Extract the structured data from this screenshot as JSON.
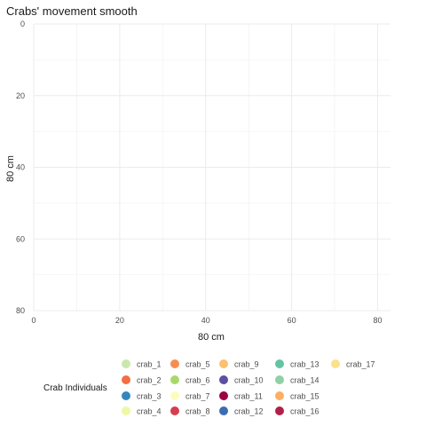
{
  "chart_data": {
    "type": "scatter",
    "title": "Crabs' movement smooth",
    "xlabel": "80 cm",
    "ylabel": "80 cm",
    "xlim": [
      0,
      83
    ],
    "ylim": [
      0,
      80
    ],
    "y_reversed": true,
    "x_ticks": [
      0,
      20,
      40,
      60,
      80
    ],
    "y_ticks": [
      0,
      20,
      40,
      60,
      80
    ],
    "x_tick_labels": [
      "0",
      "20",
      "40",
      "60",
      "80"
    ],
    "y_tick_labels": [
      "0",
      "20",
      "40",
      "60",
      "80"
    ],
    "grid": true,
    "legend_position": "bottom",
    "legend_title": "Crab Individuals",
    "series": [
      {
        "name": "crab_1",
        "color": "#c7e9ad",
        "points": []
      },
      {
        "name": "crab_2",
        "color": "#f46d43",
        "points": []
      },
      {
        "name": "crab_3",
        "color": "#3288bd",
        "points": []
      },
      {
        "name": "crab_4",
        "color": "#eef8a5",
        "points": []
      },
      {
        "name": "crab_5",
        "color": "#f88d52",
        "points": []
      },
      {
        "name": "crab_6",
        "color": "#a6d96a",
        "points": []
      },
      {
        "name": "crab_7",
        "color": "#fbfdc0",
        "points": []
      },
      {
        "name": "crab_8",
        "color": "#d53e4f",
        "points": []
      },
      {
        "name": "crab_9",
        "color": "#fdc06e",
        "points": []
      },
      {
        "name": "crab_10",
        "color": "#5e4fa2",
        "points": []
      },
      {
        "name": "crab_11",
        "color": "#9e0142",
        "points": []
      },
      {
        "name": "crab_12",
        "color": "#3c6db4",
        "points": []
      },
      {
        "name": "crab_13",
        "color": "#66c2a5",
        "points": []
      },
      {
        "name": "crab_14",
        "color": "#8fd1a4",
        "points": []
      },
      {
        "name": "crab_15",
        "color": "#fdae61",
        "points": []
      },
      {
        "name": "crab_16",
        "color": "#b11f4a",
        "points": []
      },
      {
        "name": "crab_17",
        "color": "#fee08b",
        "points": []
      }
    ]
  }
}
